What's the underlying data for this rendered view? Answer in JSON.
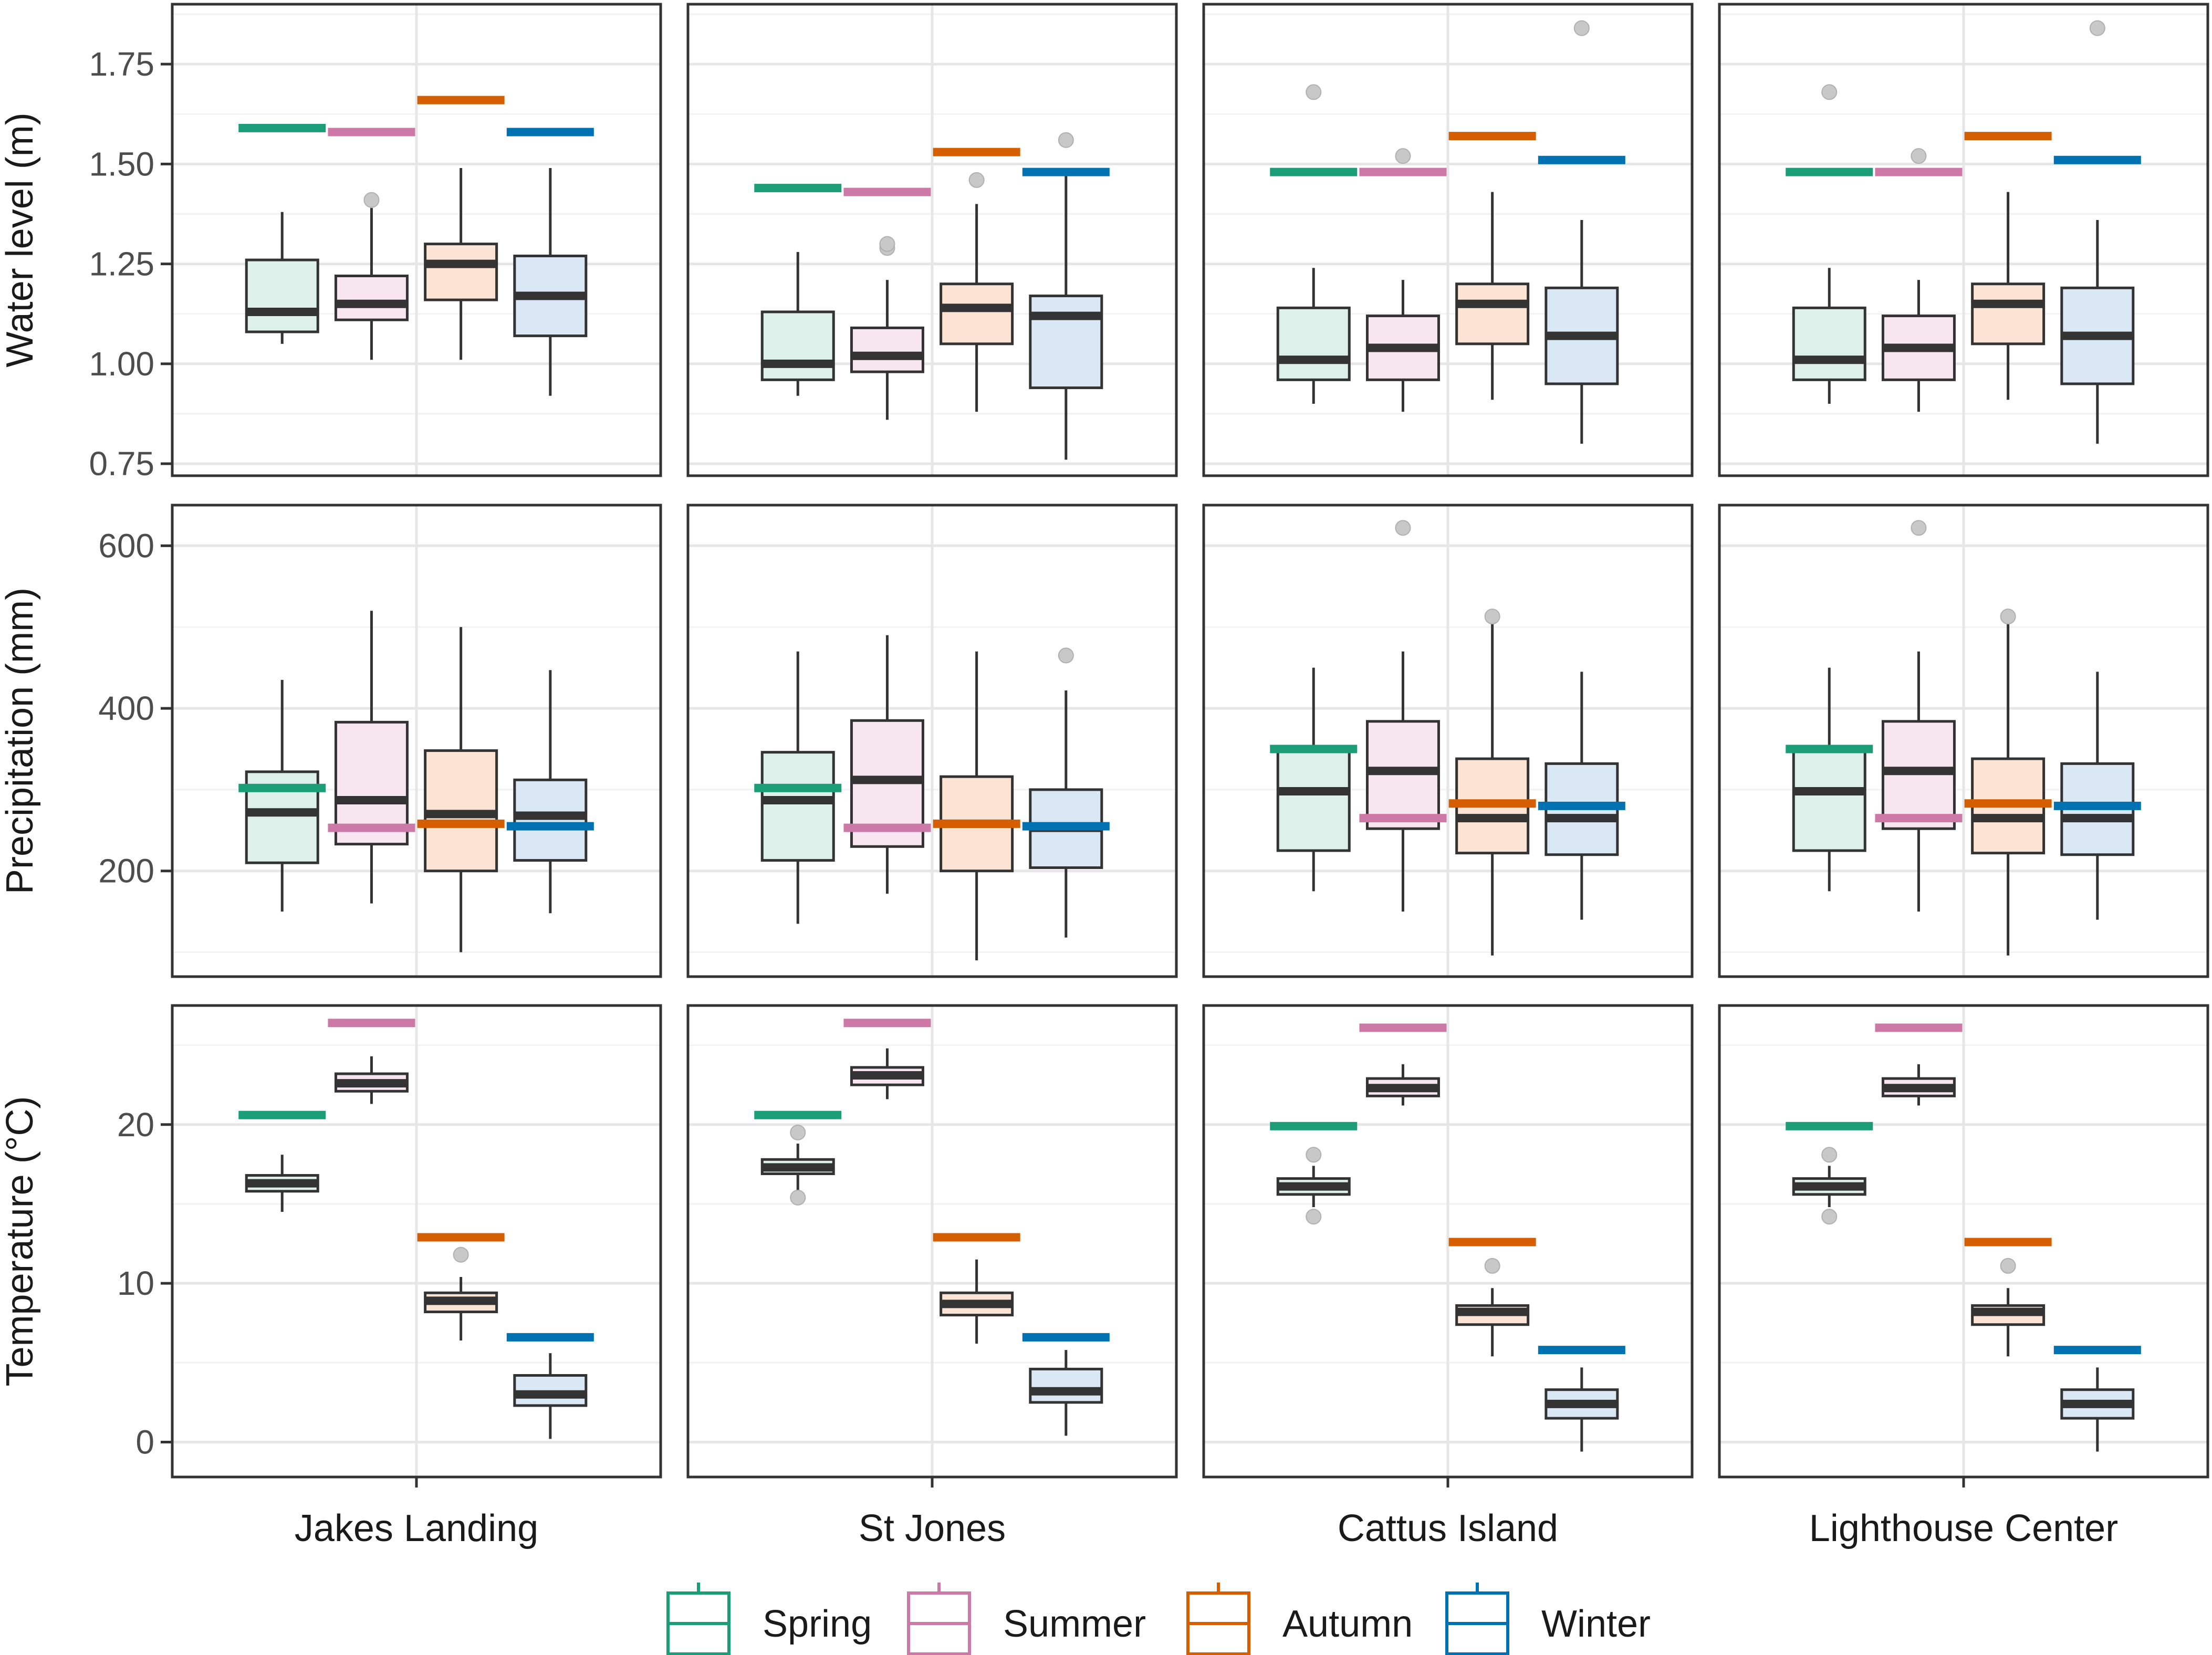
{
  "chart_data": {
    "type": "boxplot",
    "layout": "faceted grid (rows: variables, columns: sites)",
    "sites": [
      "Jakes Landing",
      "St Jones",
      "Cattus Island",
      "Lighthouse Center"
    ],
    "seasons": [
      "Spring",
      "Summer",
      "Autumn",
      "Winter"
    ],
    "season_colors": {
      "Spring": "#1b9e77",
      "Summer": "#cc79a7",
      "Autumn": "#d55e00",
      "Winter": "#0072b2"
    },
    "season_fills": {
      "Spring": "#ddf0ea",
      "Summer": "#f7e6ef",
      "Autumn": "#fbe4d3",
      "Winter": "#d9e8f4"
    },
    "median_color": "#333333",
    "outlier_color": "#c8c8c8",
    "rows": [
      {
        "name": "water",
        "ylabel": "Water level (m)",
        "ylim": [
          0.72,
          1.9
        ],
        "ticks": [
          0.75,
          1.0,
          1.25,
          1.5,
          1.75
        ],
        "tick_labels": [
          "0.75",
          "1.00",
          "1.25",
          "1.50",
          "1.75"
        ],
        "minor_ticks": [
          0.875,
          1.125,
          1.375,
          1.625,
          1.875
        ],
        "stats": {
          "Jakes Landing": [
            {
              "min": 1.05,
              "q1": 1.08,
              "median": 1.13,
              "q3": 1.26,
              "max": 1.38,
              "outliers": [],
              "ref": 1.59
            },
            {
              "min": 1.01,
              "q1": 1.11,
              "median": 1.15,
              "q3": 1.22,
              "max": 1.39,
              "outliers": [
                1.41
              ],
              "ref": 1.58
            },
            {
              "min": 1.01,
              "q1": 1.16,
              "median": 1.25,
              "q3": 1.3,
              "max": 1.49,
              "outliers": [],
              "ref": 1.66
            },
            {
              "min": 0.92,
              "q1": 1.07,
              "median": 1.17,
              "q3": 1.27,
              "max": 1.49,
              "outliers": [],
              "ref": 1.58
            }
          ],
          "St Jones": [
            {
              "min": 0.92,
              "q1": 0.96,
              "median": 1.0,
              "q3": 1.13,
              "max": 1.28,
              "outliers": [],
              "ref": 1.44
            },
            {
              "min": 0.86,
              "q1": 0.98,
              "median": 1.02,
              "q3": 1.09,
              "max": 1.21,
              "outliers": [
                1.29,
                1.3
              ],
              "ref": 1.43
            },
            {
              "min": 0.88,
              "q1": 1.05,
              "median": 1.14,
              "q3": 1.2,
              "max": 1.4,
              "outliers": [
                1.46
              ],
              "ref": 1.53
            },
            {
              "min": 0.76,
              "q1": 0.94,
              "median": 1.12,
              "q3": 1.17,
              "max": 1.47,
              "outliers": [
                1.56
              ],
              "ref": 1.48
            }
          ],
          "Cattus Island": [
            {
              "min": 0.9,
              "q1": 0.96,
              "median": 1.01,
              "q3": 1.14,
              "max": 1.24,
              "outliers": [
                1.68
              ],
              "ref": 1.48
            },
            {
              "min": 0.88,
              "q1": 0.96,
              "median": 1.04,
              "q3": 1.12,
              "max": 1.21,
              "outliers": [
                1.52
              ],
              "ref": 1.48
            },
            {
              "min": 0.91,
              "q1": 1.05,
              "median": 1.15,
              "q3": 1.2,
              "max": 1.43,
              "outliers": [],
              "ref": 1.57
            },
            {
              "min": 0.8,
              "q1": 0.95,
              "median": 1.07,
              "q3": 1.19,
              "max": 1.36,
              "outliers": [
                1.84
              ],
              "ref": 1.51
            }
          ],
          "Lighthouse Center": [
            {
              "min": 0.9,
              "q1": 0.96,
              "median": 1.01,
              "q3": 1.14,
              "max": 1.24,
              "outliers": [
                1.68
              ],
              "ref": 1.48
            },
            {
              "min": 0.88,
              "q1": 0.96,
              "median": 1.04,
              "q3": 1.12,
              "max": 1.21,
              "outliers": [
                1.52
              ],
              "ref": 1.48
            },
            {
              "min": 0.91,
              "q1": 1.05,
              "median": 1.15,
              "q3": 1.2,
              "max": 1.43,
              "outliers": [],
              "ref": 1.57
            },
            {
              "min": 0.8,
              "q1": 0.95,
              "median": 1.07,
              "q3": 1.19,
              "max": 1.36,
              "outliers": [
                1.84
              ],
              "ref": 1.51
            }
          ]
        }
      },
      {
        "name": "precip",
        "ylabel": "Precipitation (mm)",
        "ylim": [
          70,
          650
        ],
        "ticks": [
          200,
          400,
          600
        ],
        "tick_labels": [
          "200",
          "400",
          "600"
        ],
        "minor_ticks": [
          100,
          300,
          500
        ],
        "stats": {
          "Jakes Landing": [
            {
              "min": 150,
              "q1": 210,
              "median": 272,
              "q3": 322,
              "max": 435,
              "outliers": [],
              "ref": 302
            },
            {
              "min": 160,
              "q1": 233,
              "median": 287,
              "q3": 383,
              "max": 520,
              "outliers": [],
              "ref": 253
            },
            {
              "min": 100,
              "q1": 200,
              "median": 270,
              "q3": 348,
              "max": 500,
              "outliers": [],
              "ref": 258
            },
            {
              "min": 148,
              "q1": 213,
              "median": 268,
              "q3": 312,
              "max": 447,
              "outliers": [],
              "ref": 255
            }
          ],
          "St Jones": [
            {
              "min": 135,
              "q1": 213,
              "median": 287,
              "q3": 346,
              "max": 470,
              "outliers": [],
              "ref": 302
            },
            {
              "min": 172,
              "q1": 230,
              "median": 312,
              "q3": 385,
              "max": 490,
              "outliers": [],
              "ref": 253
            },
            {
              "min": 90,
              "q1": 200,
              "median": 258,
              "q3": 316,
              "max": 470,
              "outliers": [],
              "ref": 258
            },
            {
              "min": 118,
              "q1": 204,
              "median": 253,
              "q3": 300,
              "max": 422,
              "outliers": [
                465
              ],
              "ref": 255
            }
          ],
          "Cattus Island": [
            {
              "min": 175,
              "q1": 225,
              "median": 298,
              "q3": 352,
              "max": 450,
              "outliers": [],
              "ref": 350
            },
            {
              "min": 150,
              "q1": 252,
              "median": 323,
              "q3": 384,
              "max": 470,
              "outliers": [
                622
              ],
              "ref": 265
            },
            {
              "min": 96,
              "q1": 222,
              "median": 265,
              "q3": 338,
              "max": 505,
              "outliers": [
                513
              ],
              "ref": 283
            },
            {
              "min": 140,
              "q1": 220,
              "median": 265,
              "q3": 332,
              "max": 445,
              "outliers": [],
              "ref": 280
            }
          ],
          "Lighthouse Center": [
            {
              "min": 175,
              "q1": 225,
              "median": 298,
              "q3": 352,
              "max": 450,
              "outliers": [],
              "ref": 350
            },
            {
              "min": 150,
              "q1": 252,
              "median": 323,
              "q3": 384,
              "max": 470,
              "outliers": [
                622
              ],
              "ref": 265
            },
            {
              "min": 96,
              "q1": 222,
              "median": 265,
              "q3": 338,
              "max": 505,
              "outliers": [
                513
              ],
              "ref": 283
            },
            {
              "min": 140,
              "q1": 220,
              "median": 265,
              "q3": 332,
              "max": 445,
              "outliers": [],
              "ref": 280
            }
          ]
        }
      },
      {
        "name": "temp",
        "ylabel": "Temperature (°C)",
        "ylim": [
          -2.2,
          27.5
        ],
        "ticks": [
          0,
          10,
          20
        ],
        "tick_labels": [
          "0",
          "10",
          "20"
        ],
        "minor_ticks": [
          5,
          15,
          25
        ],
        "stats": {
          "Jakes Landing": [
            {
              "min": 14.5,
              "q1": 15.8,
              "median": 16.3,
              "q3": 16.8,
              "max": 18.1,
              "outliers": [],
              "ref": 20.6
            },
            {
              "min": 21.3,
              "q1": 22.1,
              "median": 22.6,
              "q3": 23.2,
              "max": 24.3,
              "outliers": [],
              "ref": 26.4
            },
            {
              "min": 6.4,
              "q1": 8.2,
              "median": 8.9,
              "q3": 9.4,
              "max": 10.4,
              "outliers": [
                11.8
              ],
              "ref": 12.9
            },
            {
              "min": 0.2,
              "q1": 2.3,
              "median": 3.0,
              "q3": 4.2,
              "max": 5.6,
              "outliers": [],
              "ref": 6.6
            }
          ],
          "St Jones": [
            {
              "min": 15.8,
              "q1": 16.9,
              "median": 17.3,
              "q3": 17.8,
              "max": 18.8,
              "outliers": [
                19.5,
                15.4
              ],
              "ref": 20.6
            },
            {
              "min": 21.6,
              "q1": 22.5,
              "median": 23.1,
              "q3": 23.6,
              "max": 24.8,
              "outliers": [],
              "ref": 26.4
            },
            {
              "min": 6.2,
              "q1": 8.0,
              "median": 8.7,
              "q3": 9.4,
              "max": 11.5,
              "outliers": [],
              "ref": 12.9
            },
            {
              "min": 0.4,
              "q1": 2.5,
              "median": 3.2,
              "q3": 4.6,
              "max": 5.8,
              "outliers": [],
              "ref": 6.6
            }
          ],
          "Cattus Island": [
            {
              "min": 14.8,
              "q1": 15.6,
              "median": 16.1,
              "q3": 16.6,
              "max": 17.4,
              "outliers": [
                18.1,
                14.2
              ],
              "ref": 19.9
            },
            {
              "min": 21.2,
              "q1": 21.8,
              "median": 22.3,
              "q3": 22.9,
              "max": 23.8,
              "outliers": [],
              "ref": 26.1
            },
            {
              "min": 5.4,
              "q1": 7.4,
              "median": 8.2,
              "q3": 8.6,
              "max": 9.7,
              "outliers": [
                11.1
              ],
              "ref": 12.6
            },
            {
              "min": -0.6,
              "q1": 1.5,
              "median": 2.4,
              "q3": 3.3,
              "max": 4.7,
              "outliers": [],
              "ref": 5.8
            }
          ],
          "Lighthouse Center": [
            {
              "min": 14.8,
              "q1": 15.6,
              "median": 16.1,
              "q3": 16.6,
              "max": 17.4,
              "outliers": [
                18.1,
                14.2
              ],
              "ref": 19.9
            },
            {
              "min": 21.2,
              "q1": 21.8,
              "median": 22.3,
              "q3": 22.9,
              "max": 23.8,
              "outliers": [],
              "ref": 26.1
            },
            {
              "min": 5.4,
              "q1": 7.4,
              "median": 8.2,
              "q3": 8.6,
              "max": 9.7,
              "outliers": [
                11.1
              ],
              "ref": 12.6
            },
            {
              "min": -0.6,
              "q1": 1.5,
              "median": 2.4,
              "q3": 3.3,
              "max": 4.7,
              "outliers": [],
              "ref": 5.8
            }
          ]
        }
      }
    ],
    "legend": {
      "position": "bottom",
      "entries": [
        "Spring",
        "Summer",
        "Autumn",
        "Winter"
      ]
    }
  }
}
